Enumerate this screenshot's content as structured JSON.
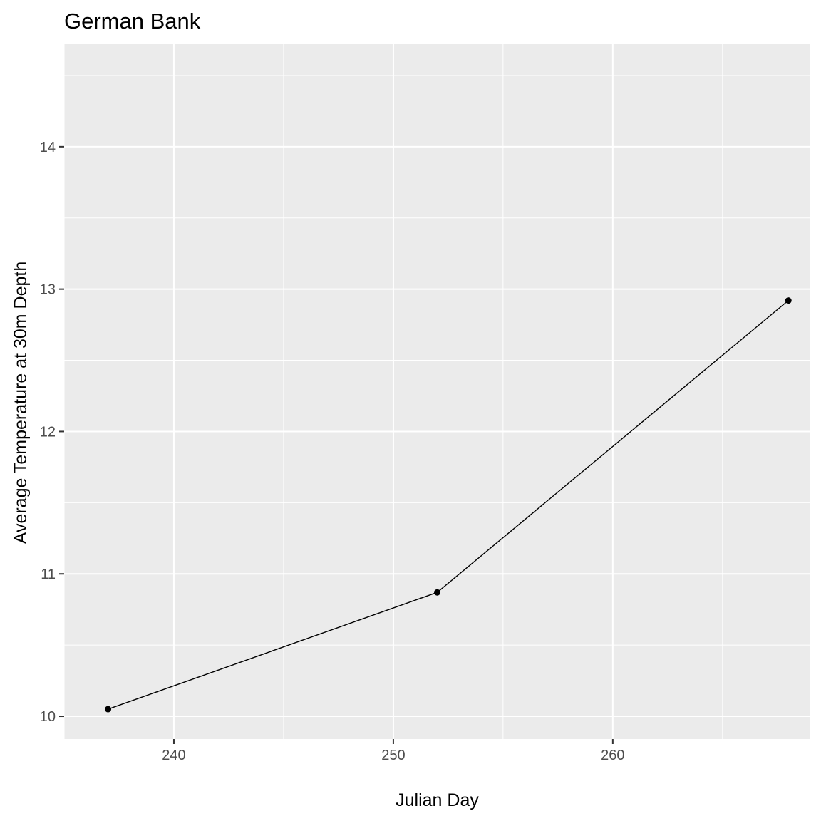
{
  "chart_data": {
    "type": "line",
    "title": "German Bank",
    "xlabel": "Julian Day",
    "ylabel": "Average Temperature at 30m Depth",
    "x": [
      237,
      252,
      268
    ],
    "series": [
      {
        "values": [
          10.05,
          10.87,
          12.92
        ],
        "color": "#000000"
      }
    ],
    "xlim": [
      235,
      269
    ],
    "ylim": [
      9.84,
      14.72
    ],
    "x_ticks": [
      240,
      250,
      260
    ],
    "x_tick_labels": [
      "240",
      "250",
      "260"
    ],
    "y_ticks": [
      10,
      11,
      12,
      13,
      14
    ],
    "y_tick_labels": [
      "10",
      "11",
      "12",
      "13",
      "14"
    ],
    "grid": true,
    "legend": "none",
    "panel_background": "#ebebeb",
    "grid_color": "#ffffff"
  }
}
